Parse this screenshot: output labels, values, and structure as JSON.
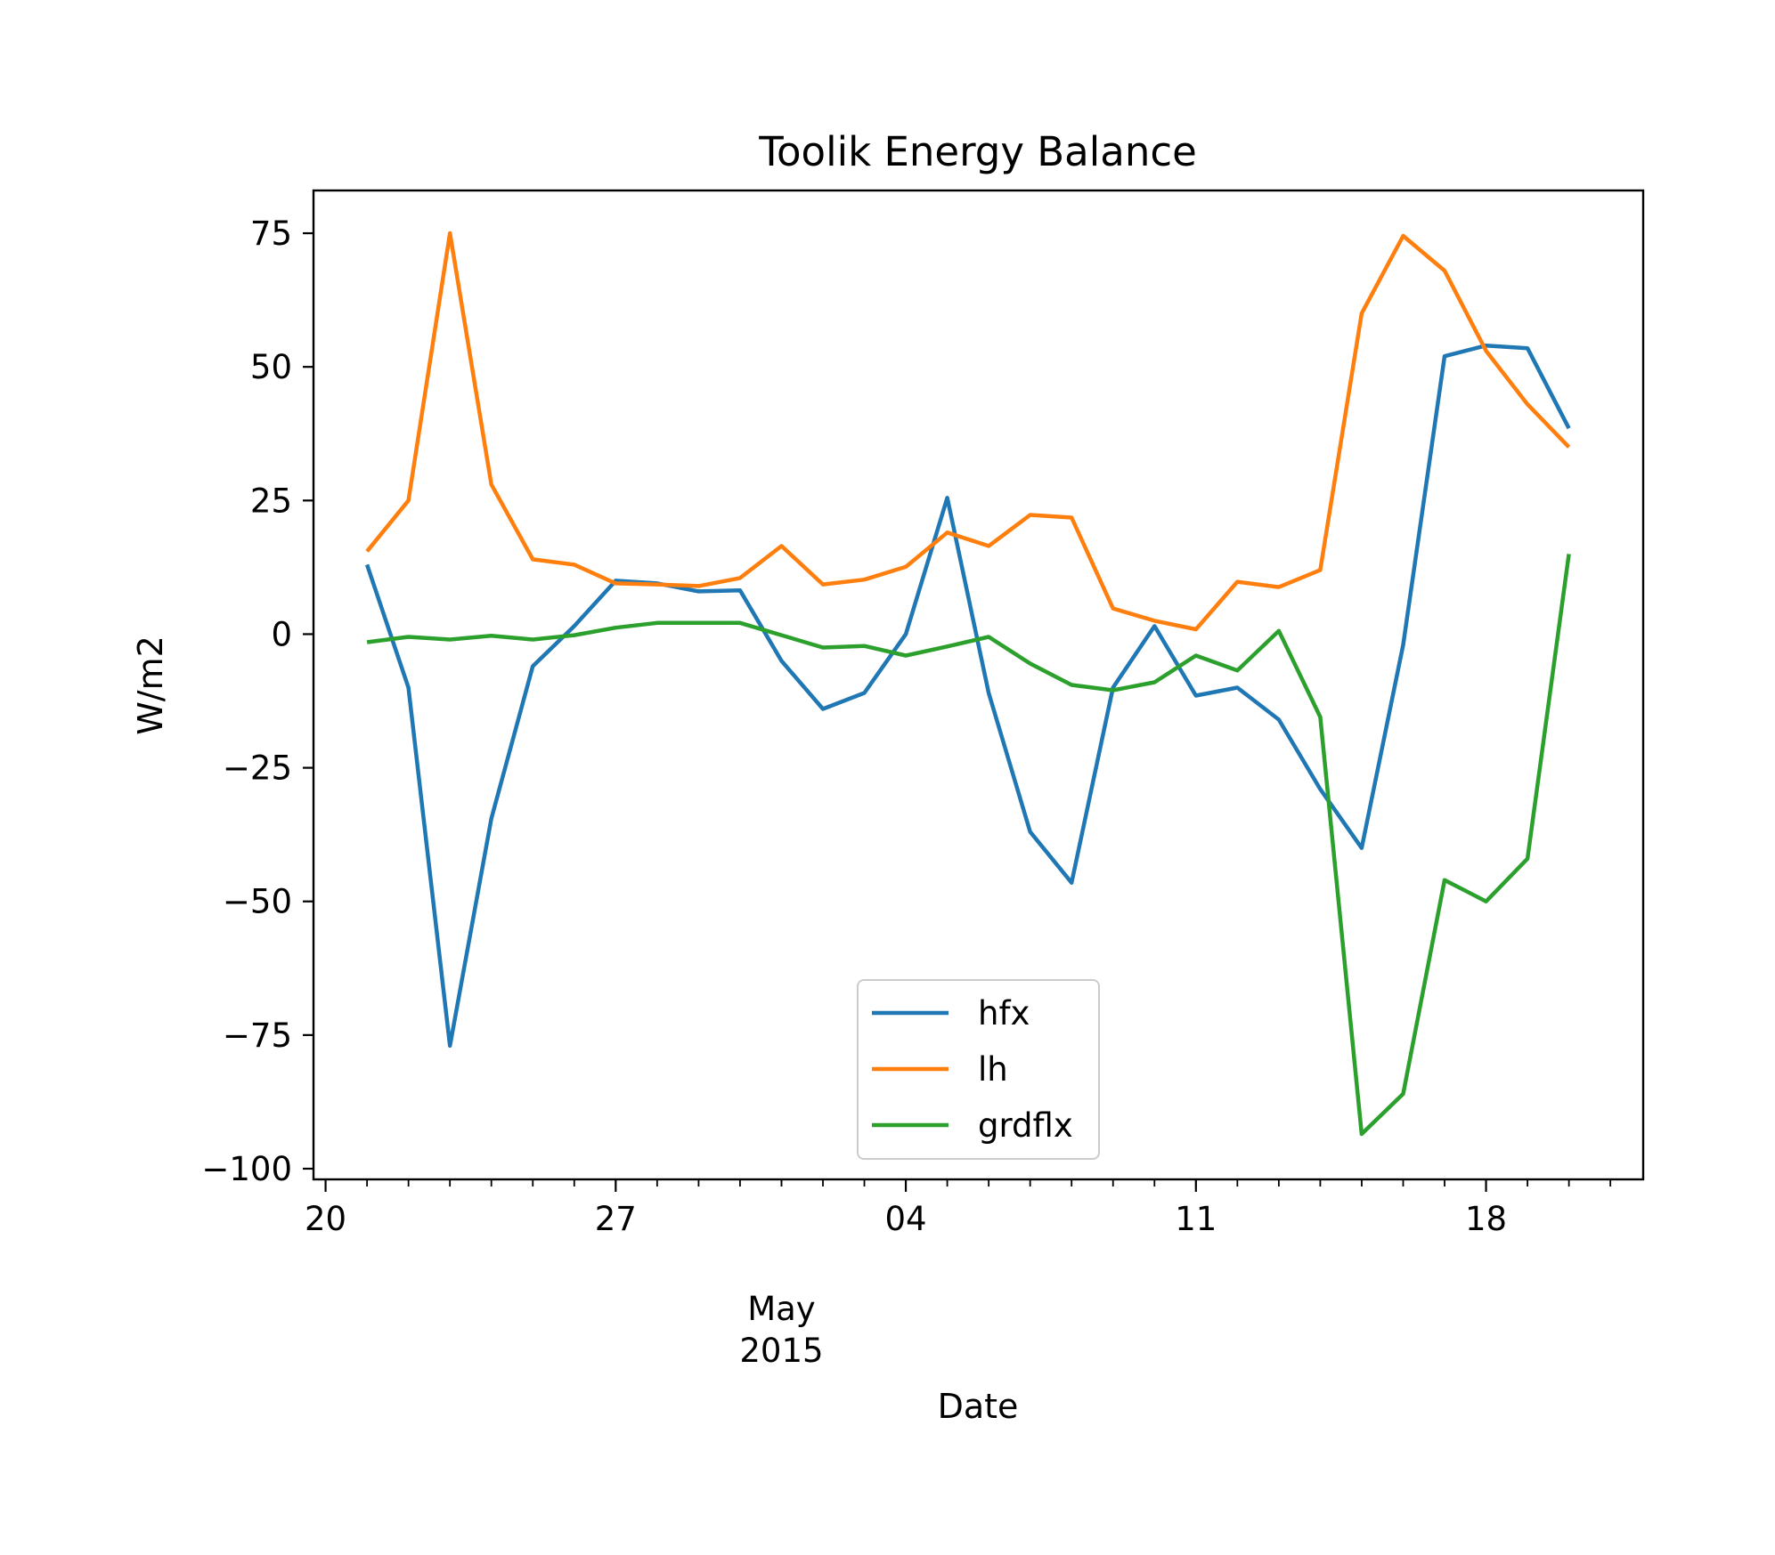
{
  "chart_data": {
    "type": "line",
    "title": "Toolik Energy Balance",
    "xlabel": "Date",
    "ylabel": "W/m2",
    "x_start": "2015-04-21",
    "x": [
      "2015-04-21",
      "2015-04-22",
      "2015-04-23",
      "2015-04-24",
      "2015-04-25",
      "2015-04-26",
      "2015-04-27",
      "2015-04-28",
      "2015-04-29",
      "2015-04-30",
      "2015-05-01",
      "2015-05-02",
      "2015-05-03",
      "2015-05-04",
      "2015-05-05",
      "2015-05-06",
      "2015-05-07",
      "2015-05-08",
      "2015-05-09",
      "2015-05-10",
      "2015-05-11",
      "2015-05-12",
      "2015-05-13",
      "2015-05-14",
      "2015-05-15",
      "2015-05-16",
      "2015-05-17",
      "2015-05-18",
      "2015-05-19",
      "2015-05-20"
    ],
    "xlim": [
      "2015-04-19T17:00",
      "2015-05-21T19:00"
    ],
    "ylim": [
      -102,
      83
    ],
    "x_ticks": [
      {
        "date": "2015-04-20",
        "label": "20"
      },
      {
        "date": "2015-04-27",
        "label": "27"
      },
      {
        "date": "2015-05-04",
        "label": "04"
      },
      {
        "date": "2015-05-11",
        "label": "11"
      },
      {
        "date": "2015-05-18",
        "label": "18"
      }
    ],
    "x_minor_tick_interval_days": 1,
    "x_secondary_label": [
      "May",
      "2015"
    ],
    "y_ticks": [
      75,
      50,
      25,
      0,
      -25,
      -50,
      -75,
      -100
    ],
    "y_tick_labels": [
      "75",
      "50",
      "25",
      "0",
      "−25",
      "−50",
      "−75",
      "−100"
    ],
    "grid": false,
    "legend_position": "lower-center",
    "series": [
      {
        "name": "hfx",
        "color": "#1f77b4",
        "values": [
          13,
          -10,
          -77,
          -34.5,
          -6,
          1.5,
          10,
          9.5,
          8,
          8.2,
          -5,
          -14,
          -11,
          0,
          25.5,
          -11,
          -37,
          -46.5,
          -10,
          1.5,
          -11.5,
          -10,
          -16,
          -29,
          -40,
          -2,
          52,
          54,
          53.5,
          38.5
        ]
      },
      {
        "name": "lh",
        "color": "#ff7f0e",
        "values": [
          15.5,
          25,
          75,
          28,
          14,
          13,
          9.5,
          9.3,
          9,
          10.5,
          16.5,
          9.3,
          10.2,
          12.6,
          19,
          16.5,
          22.3,
          21.8,
          4.8,
          2.5,
          0.9,
          9.8,
          8.8,
          12,
          60,
          74.5,
          68,
          53,
          43,
          35
        ]
      },
      {
        "name": "grdflx",
        "color": "#2ca02c",
        "values": [
          -1.5,
          -0.5,
          -1,
          -0.3,
          -1,
          -0.2,
          1.2,
          2.1,
          2.1,
          2.1,
          -0.2,
          -2.5,
          -2.2,
          -4,
          -2.3,
          -0.5,
          -5.5,
          -9.5,
          -10.5,
          -9,
          -4,
          -6.8,
          0.6,
          -15.5,
          -93.5,
          -86,
          -46,
          -50,
          -42,
          15
        ]
      }
    ]
  }
}
